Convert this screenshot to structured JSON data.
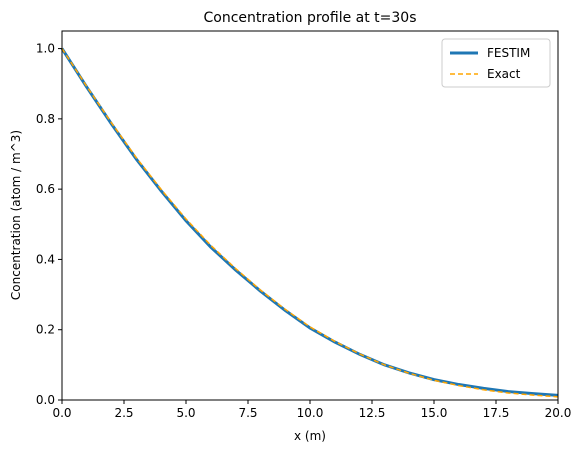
{
  "chart_data": {
    "type": "line",
    "title": "Concentration profile at t=30s",
    "x_label": "x (m)",
    "y_label": "Concentration (atom / m^3)",
    "x": [
      0,
      1,
      2,
      3,
      4,
      5,
      6,
      7,
      8,
      9,
      10,
      11,
      12,
      13,
      14,
      15,
      16,
      17,
      18,
      19,
      20
    ],
    "series": [
      {
        "name": "FESTIM",
        "color": "#1f77b4",
        "style": "solid",
        "values": [
          1.0,
          0.89,
          0.785,
          0.685,
          0.595,
          0.51,
          0.435,
          0.37,
          0.31,
          0.255,
          0.205,
          0.165,
          0.13,
          0.1,
          0.077,
          0.058,
          0.044,
          0.033,
          0.024,
          0.018,
          0.013
        ]
      },
      {
        "name": "Exact",
        "color": "#ffa500",
        "style": "dashed",
        "values": [
          1.0,
          0.892,
          0.788,
          0.689,
          0.599,
          0.515,
          0.44,
          0.374,
          0.313,
          0.258,
          0.208,
          0.167,
          0.131,
          0.1,
          0.076,
          0.056,
          0.041,
          0.029,
          0.02,
          0.014,
          0.009
        ]
      }
    ],
    "xlim": [
      0,
      20
    ],
    "ylim": [
      0,
      1.05
    ],
    "xticks": [
      {
        "value": 0,
        "label": "0.0"
      },
      {
        "value": 2.5,
        "label": "2.5"
      },
      {
        "value": 5,
        "label": "5.0"
      },
      {
        "value": 7.5,
        "label": "7.5"
      },
      {
        "value": 10,
        "label": "10.0"
      },
      {
        "value": 12.5,
        "label": "12.5"
      },
      {
        "value": 15,
        "label": "15.0"
      },
      {
        "value": 17.5,
        "label": "17.5"
      },
      {
        "value": 20,
        "label": "20.0"
      }
    ],
    "yticks": [
      {
        "value": 0,
        "label": "0.0"
      },
      {
        "value": 0.2,
        "label": "0.2"
      },
      {
        "value": 0.4,
        "label": "0.4"
      },
      {
        "value": 0.6,
        "label": "0.6"
      },
      {
        "value": 0.8,
        "label": "0.8"
      },
      {
        "value": 1.0,
        "label": "1.0"
      }
    ],
    "grid": false,
    "legend": "upper-right"
  }
}
